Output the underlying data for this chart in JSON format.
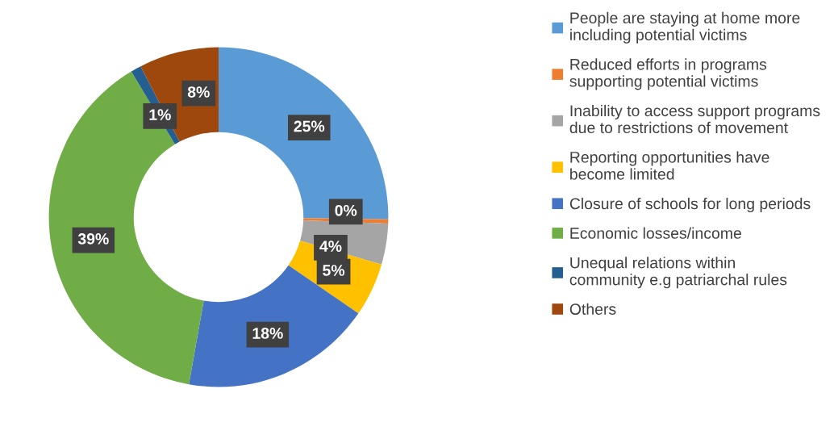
{
  "chart_data": {
    "type": "donut",
    "categories": [
      "People are staying at home more\nincluding potential victims",
      "Reduced efforts in programs\nsupporting potential victims",
      "Inability to access support programs\ndue to restrictions of movement",
      "Reporting opportunities have\nbecome limited",
      "Closure of schools for long periods",
      "Economic losses/income",
      "Unequal relations within\ncommunity e.g patriarchal rules",
      "Others"
    ],
    "values": [
      25.2,
      0.4,
      3.9,
      5.1,
      18.2,
      38.6,
      1.0,
      7.6
    ],
    "value_labels": [
      "25%",
      "0%",
      "4%",
      "5%",
      "18%",
      "39%",
      "1%",
      "8%"
    ],
    "colors": [
      "#5b9bd5",
      "#ed7d31",
      "#a5a5a5",
      "#ffc000",
      "#4472c4",
      "#70ad47",
      "#255e91",
      "#9e480e"
    ],
    "legend": "right"
  }
}
